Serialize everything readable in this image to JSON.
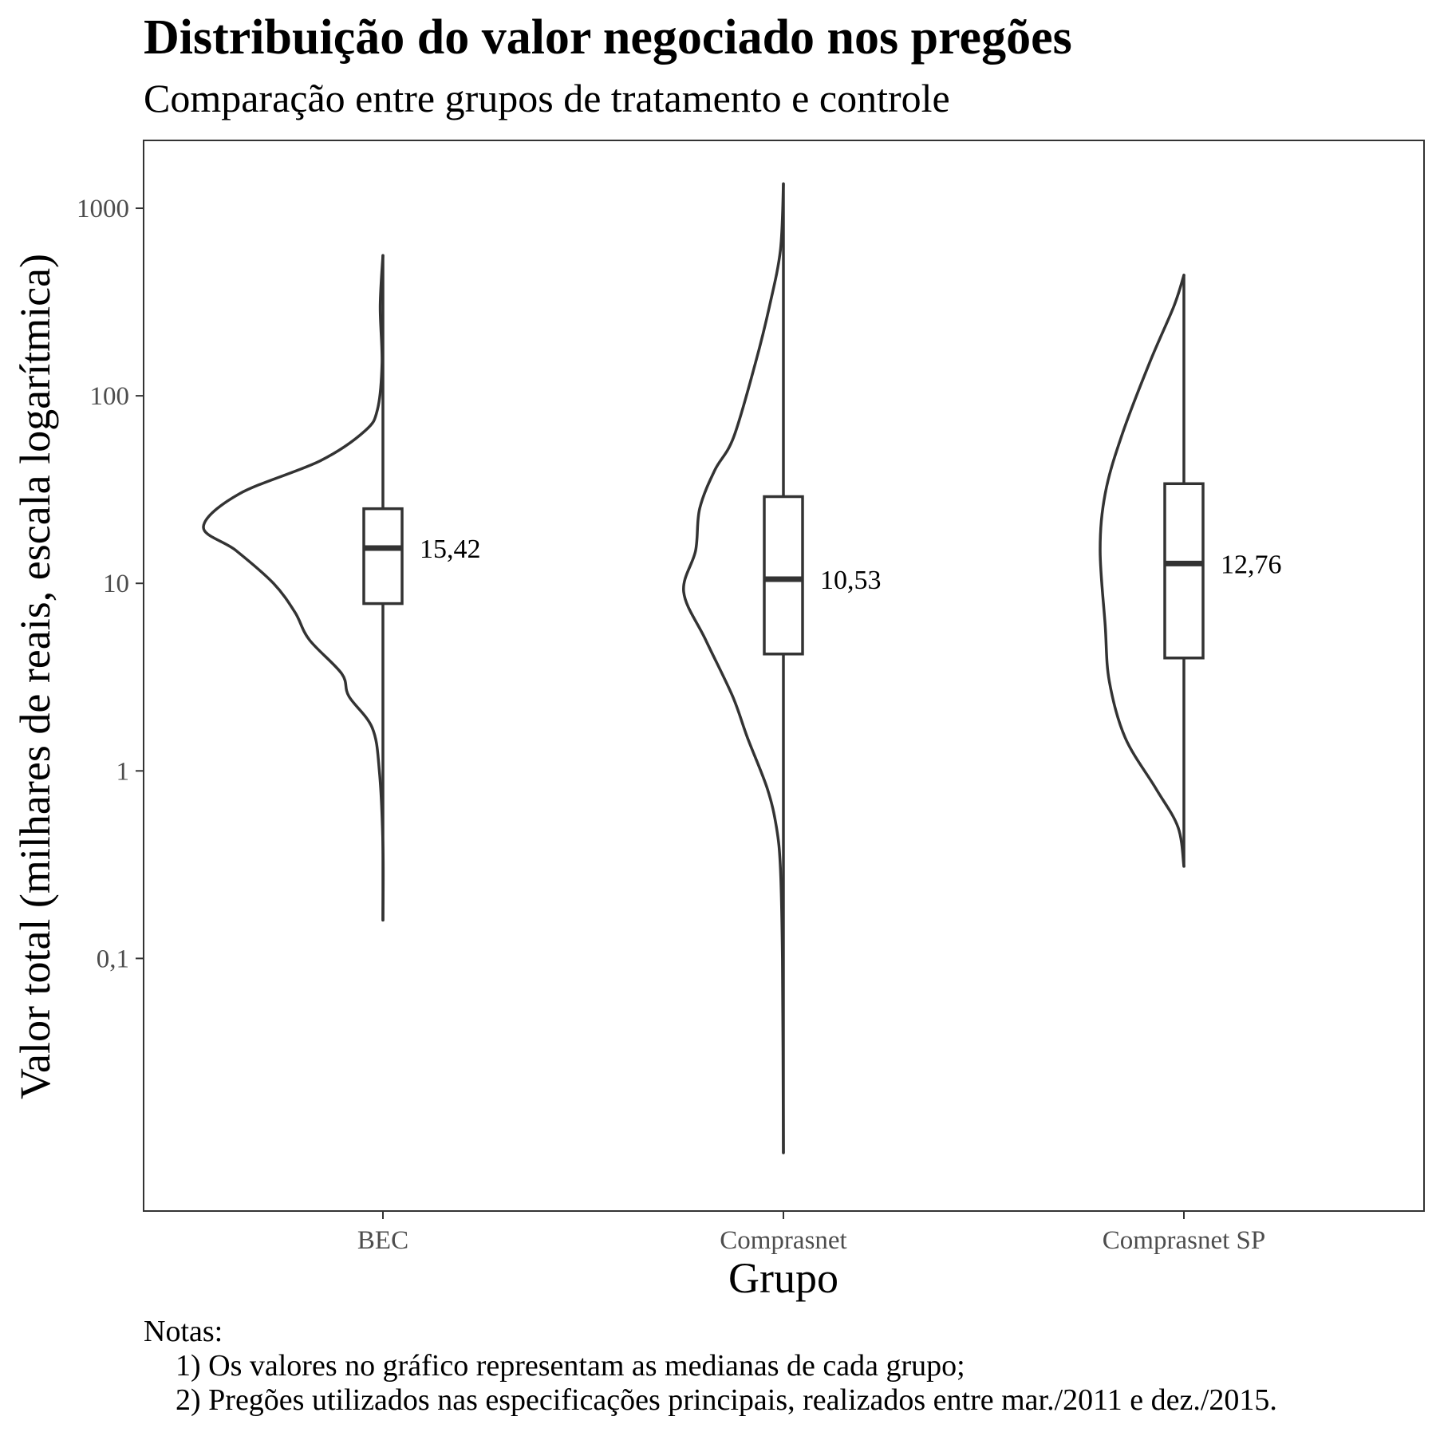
{
  "chart_data": {
    "type": "violin-box",
    "title": "Distribuição do valor negociado nos pregões",
    "subtitle": "Comparação entre grupos de tratamento e controle",
    "xlabel": "Grupo",
    "ylabel": "Valor total (milhares de reais, escala logarítmica)",
    "y_scale": "log10",
    "ylim": [
      0.0045,
      2300
    ],
    "y_ticks": [
      {
        "value": 0.1,
        "label": "0,1"
      },
      {
        "value": 1,
        "label": "1"
      },
      {
        "value": 10,
        "label": "10"
      },
      {
        "value": 100,
        "label": "100"
      },
      {
        "value": 1000,
        "label": "1000"
      }
    ],
    "categories": [
      "BEC",
      "Comprasnet",
      "Comprasnet SP"
    ],
    "grid": false,
    "groups": [
      {
        "name": "BEC",
        "min": 0.16,
        "q1": 7.8,
        "median": 15.42,
        "q3": 25,
        "max": 560,
        "median_label": "15,42",
        "density": [
          [
            0.16,
            0.0
          ],
          [
            0.4,
            0.0
          ],
          [
            1.0,
            0.02
          ],
          [
            1.7,
            0.06
          ],
          [
            2.5,
            0.19
          ],
          [
            3.3,
            0.23
          ],
          [
            5.0,
            0.41
          ],
          [
            7.0,
            0.49
          ],
          [
            10.0,
            0.61
          ],
          [
            15.0,
            0.82
          ],
          [
            20.0,
            1.0
          ],
          [
            30.0,
            0.8
          ],
          [
            45.0,
            0.35
          ],
          [
            65.0,
            0.1
          ],
          [
            85.0,
            0.03
          ],
          [
            150.0,
            0.005
          ],
          [
            300.0,
            0.015
          ],
          [
            560.0,
            0.0
          ]
        ]
      },
      {
        "name": "Comprasnet",
        "min": 0.0092,
        "q1": 4.2,
        "median": 10.53,
        "q3": 29,
        "max": 1350,
        "median_label": "10,53",
        "density": [
          [
            0.0092,
            0.0
          ],
          [
            0.1,
            0.01
          ],
          [
            0.3,
            0.03
          ],
          [
            0.5,
            0.07
          ],
          [
            0.8,
            0.16
          ],
          [
            1.5,
            0.36
          ],
          [
            2.5,
            0.51
          ],
          [
            5.0,
            0.78
          ],
          [
            9.0,
            1.0
          ],
          [
            15.0,
            0.88
          ],
          [
            25.0,
            0.84
          ],
          [
            40.0,
            0.69
          ],
          [
            60.0,
            0.5
          ],
          [
            150.0,
            0.28
          ],
          [
            300.0,
            0.14
          ],
          [
            600.0,
            0.03
          ],
          [
            1350.0,
            0.0
          ]
        ]
      },
      {
        "name": "Comprasnet SP",
        "min": 0.31,
        "q1": 4.0,
        "median": 12.76,
        "q3": 34,
        "max": 440,
        "median_label": "12,76",
        "density": [
          [
            0.31,
            0.0
          ],
          [
            0.5,
            0.07
          ],
          [
            0.8,
            0.33
          ],
          [
            1.5,
            0.7
          ],
          [
            3.0,
            0.89
          ],
          [
            6.0,
            0.94
          ],
          [
            15.0,
            1.0
          ],
          [
            30.0,
            0.94
          ],
          [
            60.0,
            0.75
          ],
          [
            150.0,
            0.41
          ],
          [
            300.0,
            0.12
          ],
          [
            440.0,
            0.0
          ]
        ]
      }
    ]
  },
  "notes": {
    "heading": "Notas:",
    "lines": [
      "1) Os valores no gráfico representam as medianas de cada grupo;",
      "2) Pregões utilizados nas especificações principais, realizados entre mar./2011 e dez./2015."
    ]
  },
  "colors": {
    "line": "#333333",
    "tick": "#4d4d4d",
    "text": "#000000",
    "background": "#ffffff"
  }
}
